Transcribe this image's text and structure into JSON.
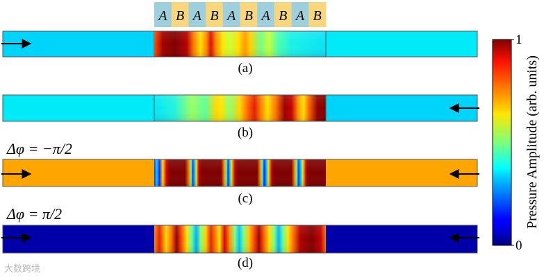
{
  "layer_header": {
    "labels": [
      "A",
      "B",
      "A",
      "B",
      "A",
      "B",
      "A",
      "B",
      "A",
      "B"
    ],
    "colors": {
      "A": "#9ecfdc",
      "B": "#f8d67e"
    }
  },
  "panels": [
    {
      "id": "a",
      "caption": "(a)",
      "annotation": "",
      "arrows": [
        "left-right"
      ],
      "uniform_level": 0.4
    },
    {
      "id": "b",
      "caption": "(b)",
      "annotation": "",
      "arrows": [
        "right-left"
      ],
      "uniform_level": 0.4
    },
    {
      "id": "c",
      "caption": "(c)",
      "annotation": "Δφ = −π/2",
      "arrows": [
        "left-right",
        "right-left"
      ],
      "uniform_level": 0.72
    },
    {
      "id": "d",
      "caption": "(d)",
      "annotation": "Δφ = π/2",
      "arrows": [
        "left-right",
        "right-left"
      ],
      "uniform_level": 0.03
    }
  ],
  "colorbar": {
    "label": "Pressure Amplitude (arb. units)",
    "max_label": "1",
    "min_label": "0",
    "colormap": "jet"
  },
  "watermark": "大数跨境",
  "colors": {
    "a_incident_side": "#00d8f8",
    "c_uniform": "#ffa500",
    "d_uniform": "#0000a8",
    "peak": "#800000"
  }
}
